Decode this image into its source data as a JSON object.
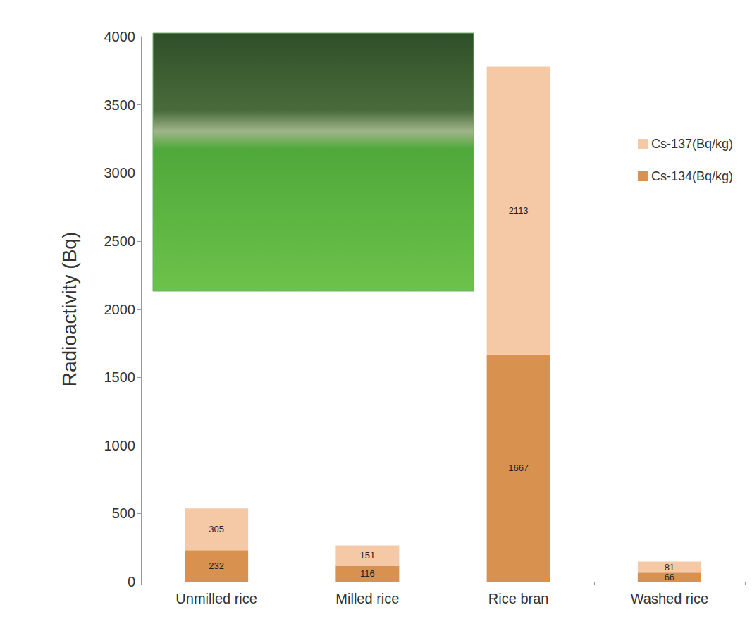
{
  "chart_data": {
    "type": "bar",
    "stacked": true,
    "data_labels": true,
    "y_label": "Radioactivity (Bq)",
    "categories": [
      "Unmilled rice",
      "Milled rice",
      "Rice bran",
      "Washed rice"
    ],
    "series": [
      {
        "name": "Cs-134(Bq/kg)",
        "color": "#d8914f",
        "values": [
          232,
          116,
          1667,
          66
        ]
      },
      {
        "name": "Cs-137(Bq/kg)",
        "color": "#f5c9a5",
        "values": [
          305,
          151,
          2113,
          81
        ]
      }
    ],
    "ylim": [
      0,
      4000
    ],
    "yticks": [
      0,
      500,
      1000,
      1500,
      2000,
      2500,
      3000,
      3500,
      4000
    ],
    "grid": false,
    "legend": "right"
  }
}
